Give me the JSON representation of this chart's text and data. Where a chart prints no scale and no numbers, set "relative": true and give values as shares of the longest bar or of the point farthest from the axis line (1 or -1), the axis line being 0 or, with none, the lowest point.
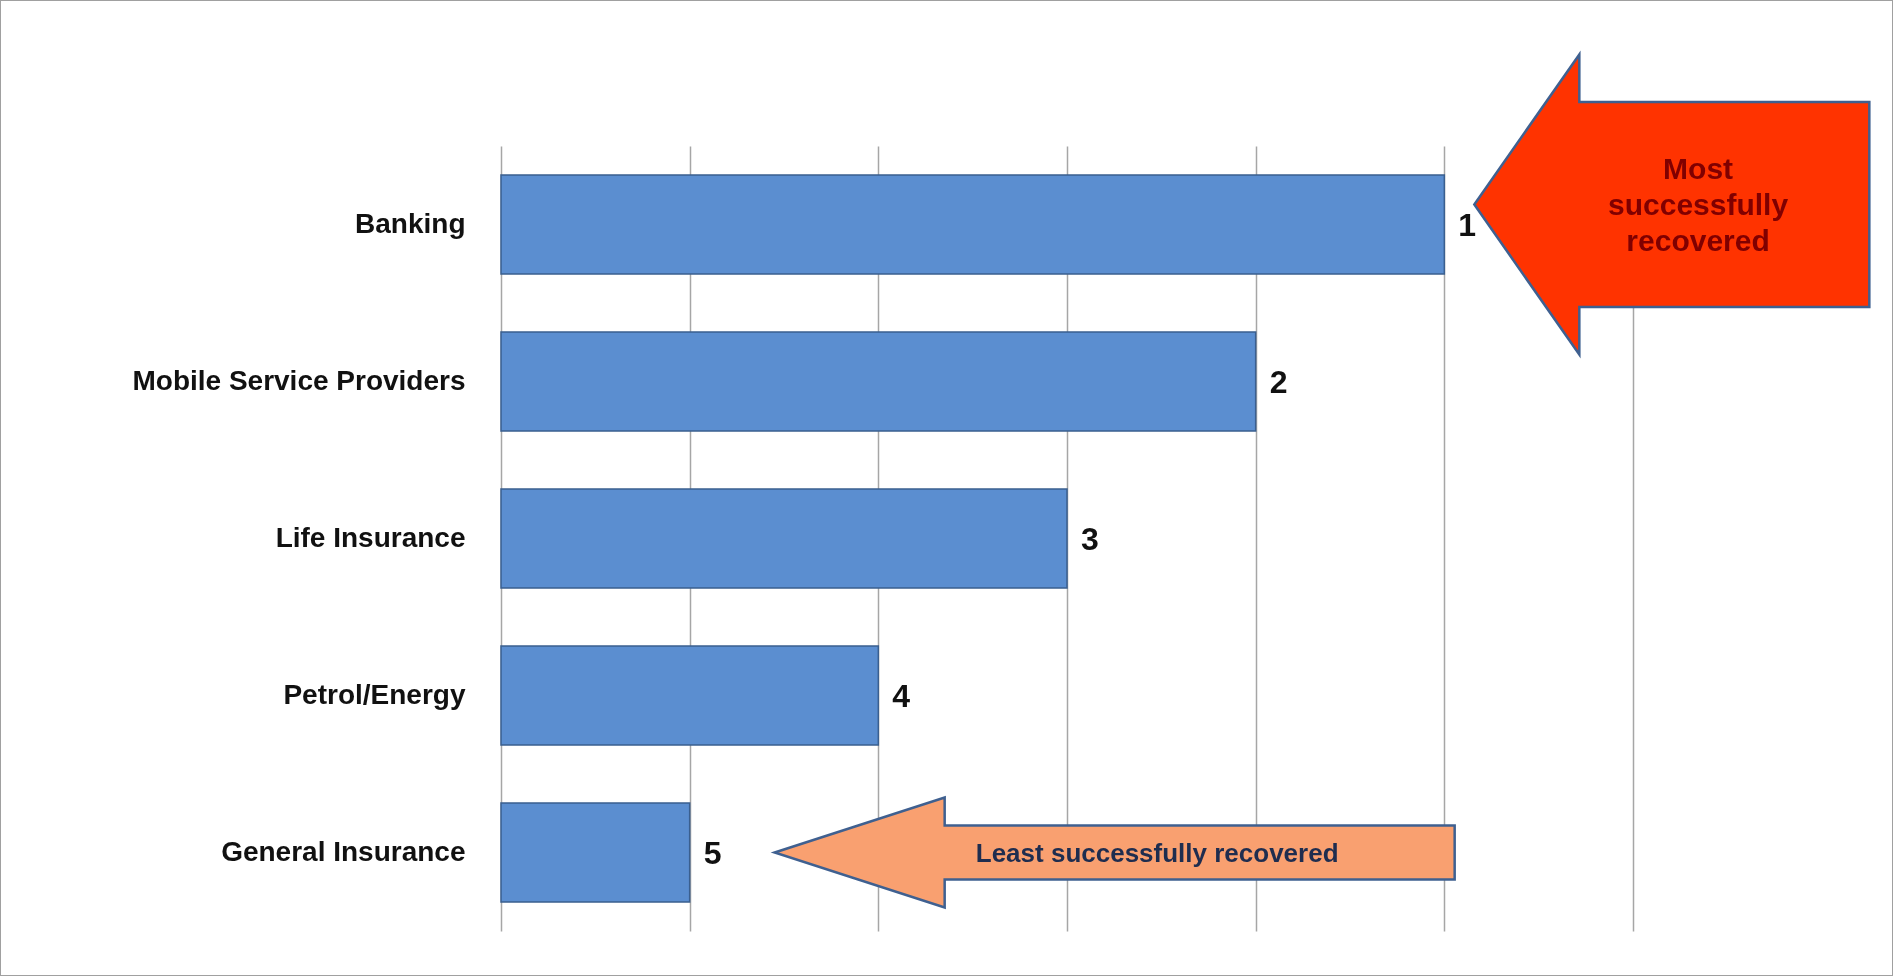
{
  "chart_data": {
    "type": "bar",
    "orientation": "horizontal",
    "relative": true,
    "categories": [
      "Banking",
      "Mobile Service Providers",
      "Life Insurance",
      "Petrol/Energy",
      "General Insurance"
    ],
    "values": [
      1,
      0.8,
      0.6,
      0.4,
      0.2
    ],
    "color": "#5b8ed0",
    "grid": "x",
    "annotations": [
      {
        "text": "1",
        "x": 1,
        "y": "Banking"
      },
      {
        "text": "2",
        "x": 0.8,
        "y": "Mobile Service Providers"
      },
      {
        "text": "3",
        "x": 0.6,
        "y": "Life Insurance"
      },
      {
        "text": "4",
        "x": 0.4,
        "y": "Petrol/Energy"
      },
      {
        "text": "5",
        "x": 0.2,
        "y": "General Insurance"
      },
      "Most successfully recovered",
      "Least successfully recovered"
    ]
  }
}
